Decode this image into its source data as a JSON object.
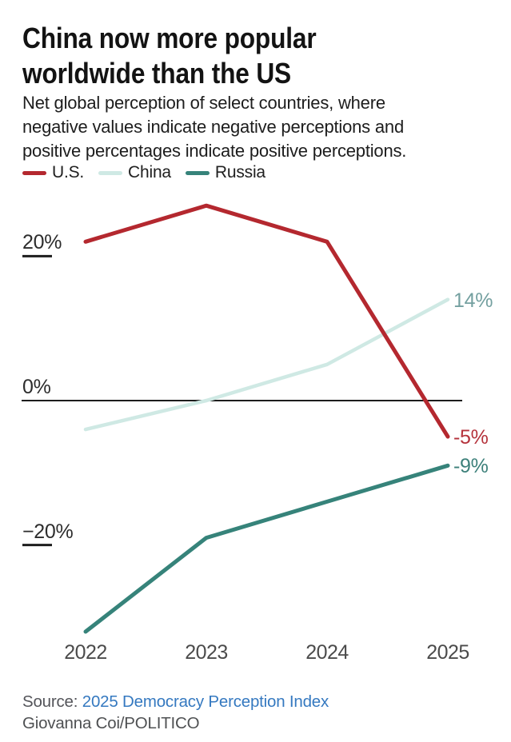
{
  "header": {
    "title": "China now more popular worldwide than the US",
    "subtitle": "Net global perception of select countries, where negative values indicate negative perceptions and positive percentages indicate positive perceptions."
  },
  "legend": [
    {
      "label": "U.S.",
      "color": "#b4282f"
    },
    {
      "label": "China",
      "color": "#cfe9e4"
    },
    {
      "label": "Russia",
      "color": "#36837a"
    }
  ],
  "chart_data": {
    "type": "line",
    "x": [
      2022,
      2023,
      2024,
      2025
    ],
    "x_tick_labels": [
      "2022",
      "2023",
      "2024",
      "2025"
    ],
    "series": [
      {
        "name": "U.S.",
        "color": "#b4282f",
        "values": [
          22,
          27,
          22,
          -5
        ],
        "end_label": "-5%",
        "end_label_color": "#b5333c"
      },
      {
        "name": "China",
        "color": "#cfe9e4",
        "values": [
          -4,
          0,
          5,
          14
        ],
        "end_label": "14%",
        "end_label_color": "#74a0a0"
      },
      {
        "name": "Russia",
        "color": "#36837a",
        "values": [
          -32,
          -19,
          -14,
          -9
        ],
        "end_label": "-9%",
        "end_label_color": "#3e817b"
      }
    ],
    "y_ticks": [
      {
        "value": 20,
        "label": "20%"
      },
      {
        "value": 0,
        "label": "0%"
      },
      {
        "value": -20,
        "label": "−20%"
      }
    ],
    "ylim": [
      -35,
      30
    ],
    "baseline": 0,
    "grid": "baseline-only",
    "legend_position": "top-left",
    "axis_colors": {
      "baseline": "#1d1d1d",
      "tick": "#1d1d1d"
    }
  },
  "footer": {
    "source_prefix": "Source: ",
    "source_link": "2025 Democracy Perception Index",
    "byline": "Giovanna Coi/POLITICO",
    "link_color": "#3579c0"
  }
}
